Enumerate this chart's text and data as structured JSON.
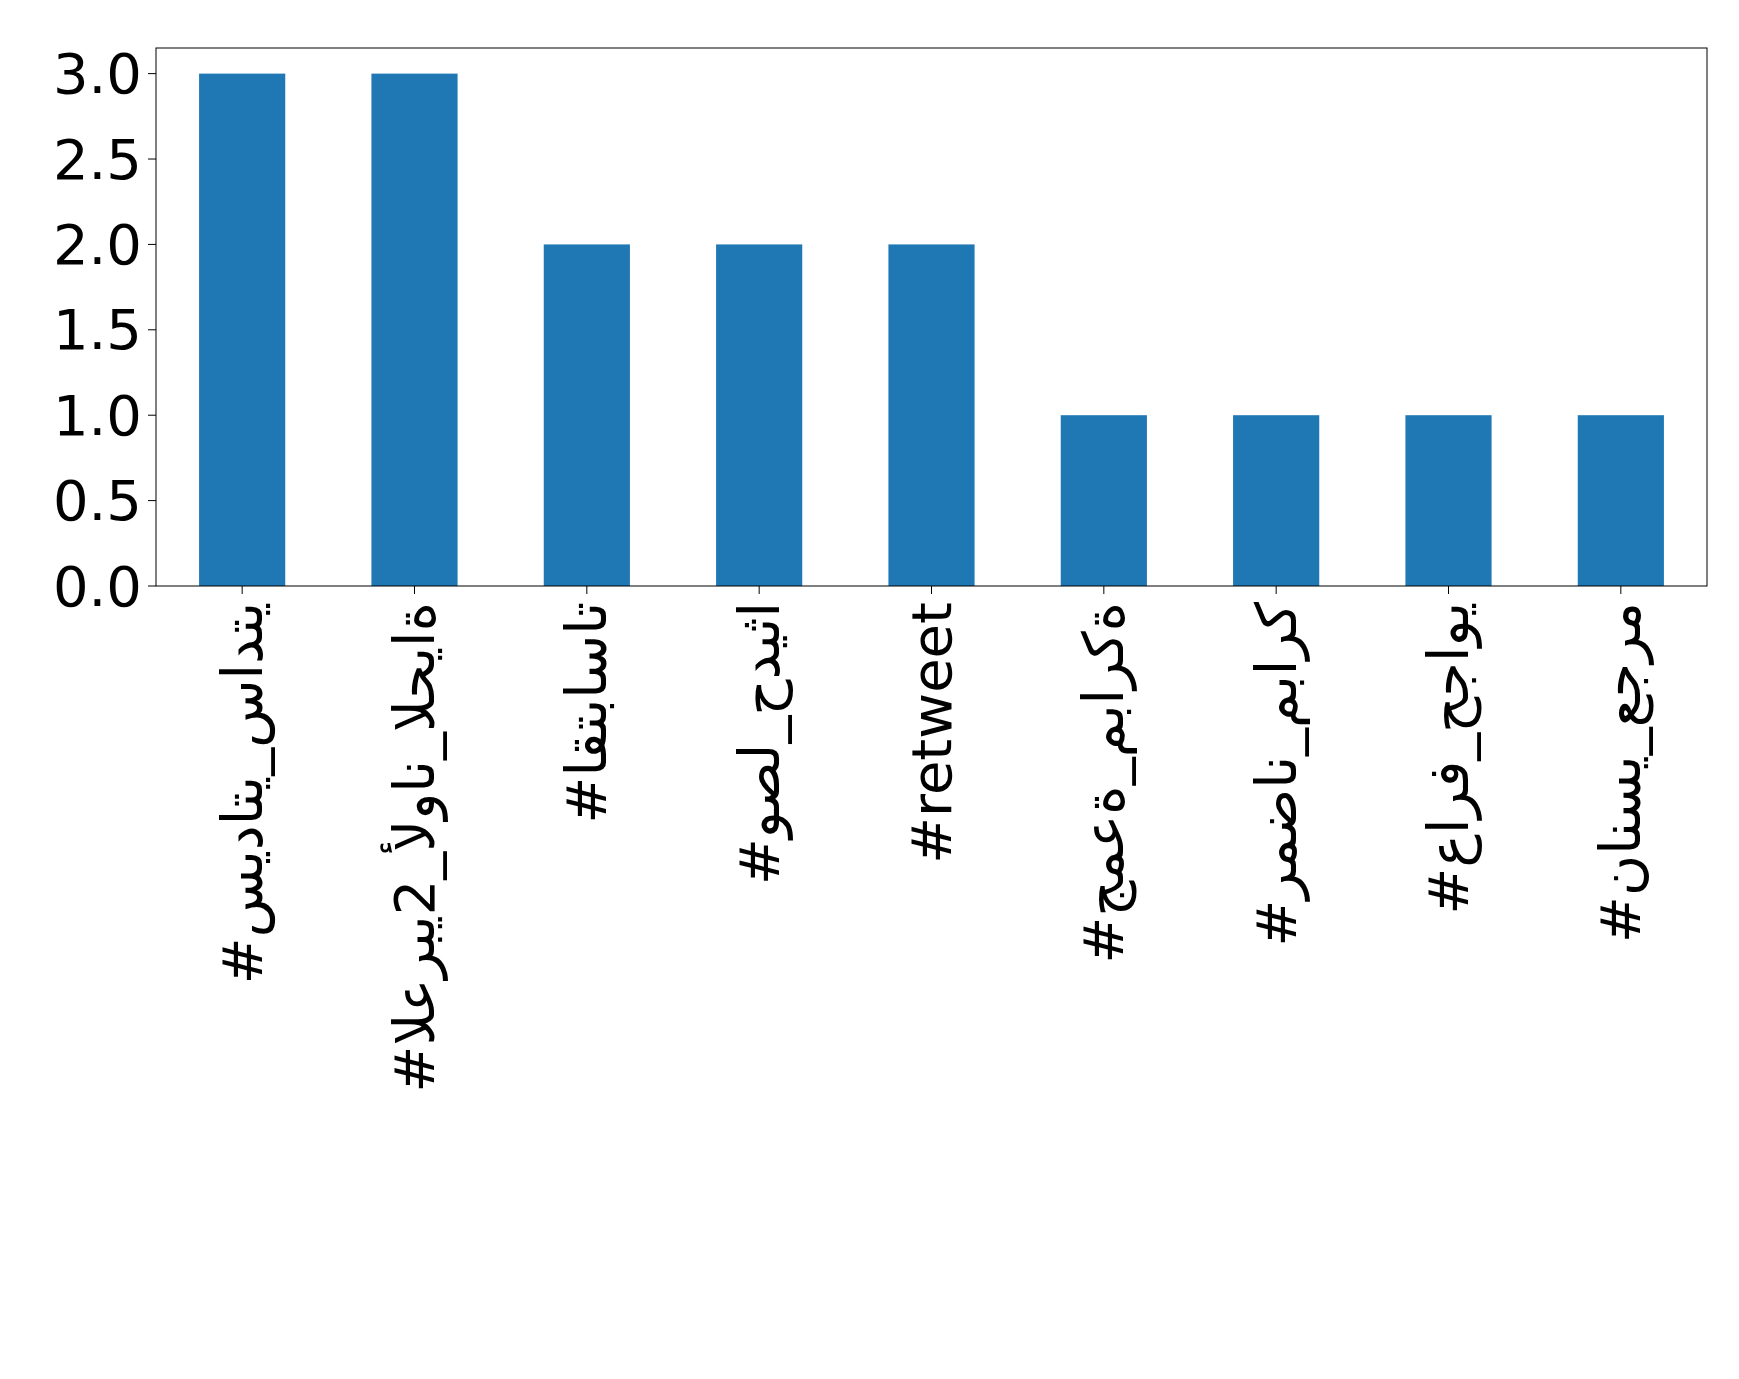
{
  "chart_data": {
    "type": "bar",
    "categories": [
      "#سيداتي_سادتي",
      "#العربي2_ألوان_الحياة",
      "#اقتباسات",
      "#وصل_حديثا",
      "#retweet",
      "#جمعة_مباركة",
      "#رمضان_مبارك",
      "#عارف_حجاوي",
      "#نانسي_عجرم"
    ],
    "values": [
      3,
      3,
      2,
      2,
      2,
      1,
      1,
      1,
      1
    ],
    "color": "#1f77b4",
    "ylim": [
      0,
      3.15
    ],
    "yticks": [
      {
        "value": 0,
        "label": "0.0"
      },
      {
        "value": 0.5,
        "label": "0.5"
      },
      {
        "value": 1,
        "label": "1.0"
      },
      {
        "value": 1.5,
        "label": "1.5"
      },
      {
        "value": 2,
        "label": "2.0"
      },
      {
        "value": 2.5,
        "label": "2.5"
      },
      {
        "value": 3,
        "label": "3.0"
      }
    ],
    "grid": false
  }
}
